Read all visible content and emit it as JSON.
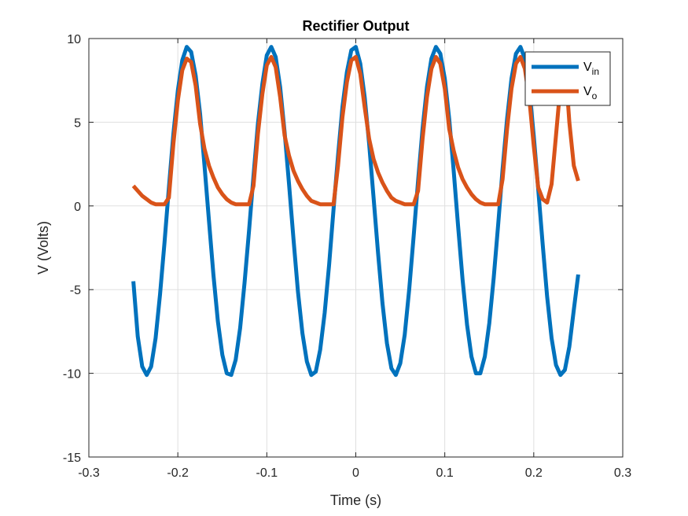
{
  "chart_data": {
    "type": "line",
    "title": "Rectifier Output",
    "xlabel": "Time (s)",
    "ylabel": "V (Volts)",
    "xlim": [
      -0.3,
      0.3
    ],
    "ylim": [
      -15,
      10
    ],
    "xticks": [
      -0.3,
      -0.2,
      -0.1,
      0,
      0.1,
      0.2,
      0.3
    ],
    "xtick_labels": [
      "-0.3",
      "-0.2",
      "-0.1",
      "0",
      "0.1",
      "0.2",
      "0.3"
    ],
    "yticks": [
      -15,
      -10,
      -5,
      0,
      5,
      10
    ],
    "ytick_labels": [
      "-15",
      "-10",
      "-5",
      "0",
      "5",
      "10"
    ],
    "grid": true,
    "legend_position": "top-right",
    "series": [
      {
        "name": "V",
        "subscript": "in",
        "color": "#0072BD",
        "x": [
          -0.25,
          -0.245,
          -0.24,
          -0.235,
          -0.23,
          -0.225,
          -0.22,
          -0.215,
          -0.21,
          -0.205,
          -0.2,
          -0.195,
          -0.19,
          -0.185,
          -0.18,
          -0.175,
          -0.17,
          -0.165,
          -0.16,
          -0.155,
          -0.15,
          -0.145,
          -0.14,
          -0.135,
          -0.13,
          -0.125,
          -0.12,
          -0.115,
          -0.11,
          -0.105,
          -0.1,
          -0.095,
          -0.09,
          -0.085,
          -0.08,
          -0.075,
          -0.07,
          -0.065,
          -0.06,
          -0.055,
          -0.05,
          -0.045,
          -0.04,
          -0.035,
          -0.03,
          -0.025,
          -0.02,
          -0.015,
          -0.01,
          -0.005,
          0,
          0.005,
          0.01,
          0.015,
          0.02,
          0.025,
          0.03,
          0.035,
          0.04,
          0.045,
          0.05,
          0.055,
          0.06,
          0.065,
          0.07,
          0.075,
          0.08,
          0.085,
          0.09,
          0.095,
          0.1,
          0.105,
          0.11,
          0.115,
          0.12,
          0.125,
          0.13,
          0.135,
          0.14,
          0.145,
          0.15,
          0.155,
          0.16,
          0.165,
          0.17,
          0.175,
          0.18,
          0.185,
          0.19,
          0.195,
          0.2,
          0.205,
          0.21,
          0.215,
          0.22,
          0.225,
          0.23,
          0.235,
          0.24,
          0.245,
          0.25
        ],
        "y": [
          -4.5,
          -7.8,
          -9.6,
          -10.1,
          -9.6,
          -7.9,
          -5.3,
          -2.2,
          1.1,
          4.3,
          6.9,
          8.7,
          9.5,
          9.2,
          7.8,
          5.5,
          2.4,
          -0.9,
          -4.1,
          -6.9,
          -8.9,
          -10.0,
          -10.1,
          -9.2,
          -7.3,
          -4.6,
          -1.5,
          1.8,
          4.9,
          7.3,
          9.0,
          9.5,
          8.9,
          7.1,
          4.4,
          1.3,
          -2.0,
          -5.1,
          -7.6,
          -9.3,
          -10.1,
          -9.9,
          -8.6,
          -6.4,
          -3.5,
          -0.2,
          3.0,
          5.9,
          8.0,
          9.3,
          9.5,
          8.5,
          6.5,
          3.7,
          0.5,
          -2.8,
          -5.8,
          -8.2,
          -9.7,
          -10.1,
          -9.4,
          -7.7,
          -5.0,
          -1.8,
          1.5,
          4.6,
          7.1,
          8.8,
          9.5,
          9.1,
          7.6,
          5.2,
          2.1,
          -1.2,
          -4.4,
          -7.1,
          -9.0,
          -10.0,
          -10.0,
          -9.0,
          -7.0,
          -4.3,
          -1.1,
          2.2,
          5.2,
          7.6,
          9.1,
          9.5,
          8.8,
          7.0,
          4.2,
          1.0,
          -2.3,
          -5.4,
          -7.9,
          -9.5,
          -10.1,
          -9.8,
          -8.4,
          -6.2,
          -4.1
        ]
      },
      {
        "name": "V",
        "subscript": "o",
        "color": "#D95319",
        "x": [
          -0.25,
          -0.245,
          -0.24,
          -0.235,
          -0.23,
          -0.225,
          -0.22,
          -0.215,
          -0.21,
          -0.205,
          -0.2,
          -0.195,
          -0.19,
          -0.185,
          -0.18,
          -0.175,
          -0.17,
          -0.165,
          -0.16,
          -0.155,
          -0.15,
          -0.145,
          -0.14,
          -0.135,
          -0.13,
          -0.125,
          -0.12,
          -0.115,
          -0.11,
          -0.105,
          -0.1,
          -0.095,
          -0.09,
          -0.085,
          -0.08,
          -0.075,
          -0.07,
          -0.065,
          -0.06,
          -0.055,
          -0.05,
          -0.045,
          -0.04,
          -0.035,
          -0.03,
          -0.025,
          -0.02,
          -0.015,
          -0.01,
          -0.005,
          0,
          0.005,
          0.01,
          0.015,
          0.02,
          0.025,
          0.03,
          0.035,
          0.04,
          0.045,
          0.05,
          0.055,
          0.06,
          0.065,
          0.07,
          0.075,
          0.08,
          0.085,
          0.09,
          0.095,
          0.1,
          0.105,
          0.11,
          0.115,
          0.12,
          0.125,
          0.13,
          0.135,
          0.14,
          0.145,
          0.15,
          0.155,
          0.16,
          0.165,
          0.17,
          0.175,
          0.18,
          0.185,
          0.19,
          0.195,
          0.2,
          0.205,
          0.21,
          0.215,
          0.22,
          0.225,
          0.23,
          0.235,
          0.24,
          0.245,
          0.25
        ],
        "y": [
          1.2,
          0.9,
          0.6,
          0.4,
          0.2,
          0.1,
          0.1,
          0.1,
          0.5,
          3.7,
          6.3,
          8.1,
          8.8,
          8.6,
          7.2,
          4.9,
          3.4,
          2.4,
          1.7,
          1.1,
          0.7,
          0.4,
          0.2,
          0.1,
          0.1,
          0.1,
          0.1,
          1.2,
          4.3,
          6.7,
          8.4,
          8.9,
          8.3,
          6.5,
          4.2,
          3.0,
          2.1,
          1.5,
          1.0,
          0.6,
          0.3,
          0.2,
          0.1,
          0.1,
          0.1,
          0.1,
          2.4,
          5.3,
          7.4,
          8.7,
          8.9,
          7.9,
          5.9,
          4.0,
          2.8,
          2.0,
          1.4,
          0.9,
          0.5,
          0.3,
          0.2,
          0.1,
          0.1,
          0.1,
          0.9,
          4.0,
          6.5,
          8.2,
          8.9,
          8.5,
          7.0,
          4.6,
          3.3,
          2.3,
          1.6,
          1.1,
          0.7,
          0.4,
          0.2,
          0.1,
          0.1,
          0.1,
          0.1,
          1.6,
          4.6,
          7.0,
          8.5,
          8.9,
          8.2,
          6.4,
          3.6,
          1.1,
          0.4,
          0.2,
          1.3,
          4.2,
          7.2,
          8.8,
          5.0,
          2.4,
          1.5
        ]
      }
    ]
  }
}
